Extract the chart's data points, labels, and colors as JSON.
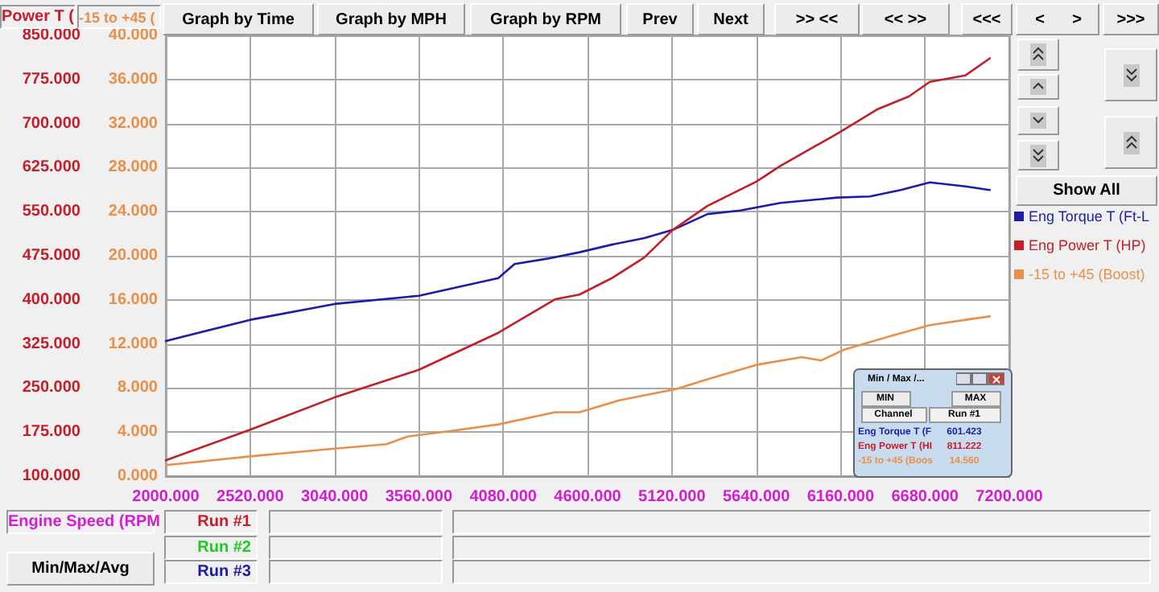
{
  "chart_data": {
    "type": "line",
    "xlabel": "Engine Speed (RPM",
    "ylabel": "Power T (",
    "y2label": "-15 to +45 (",
    "xlim": [
      2000,
      7200
    ],
    "xticks": [
      {
        "value": 2000,
        "label": "2000.000"
      },
      {
        "value": 2520,
        "label": "2520.000"
      },
      {
        "value": 3040,
        "label": "3040.000"
      },
      {
        "value": 3560,
        "label": "3560.000"
      },
      {
        "value": 4080,
        "label": "4080.000"
      },
      {
        "value": 4600,
        "label": "4600.000"
      },
      {
        "value": 5120,
        "label": "5120.000"
      },
      {
        "value": 5640,
        "label": "5640.000"
      },
      {
        "value": 6160,
        "label": "6160.000"
      },
      {
        "value": 6680,
        "label": "6680.000"
      },
      {
        "value": 7200,
        "label": "7200.000"
      }
    ],
    "ylim": [
      100,
      850
    ],
    "yticks": [
      {
        "value": 100,
        "label": "100.000"
      },
      {
        "value": 175,
        "label": "175.000"
      },
      {
        "value": 250,
        "label": "250.000"
      },
      {
        "value": 325,
        "label": "325.000"
      },
      {
        "value": 400,
        "label": "400.000"
      },
      {
        "value": 475,
        "label": "475.000"
      },
      {
        "value": 550,
        "label": "550.000"
      },
      {
        "value": 625,
        "label": "625.000"
      },
      {
        "value": 700,
        "label": "700.000"
      },
      {
        "value": 775,
        "label": "775.000"
      },
      {
        "value": 850,
        "label": "850.000"
      }
    ],
    "y2lim": [
      0,
      40
    ],
    "y2ticks": [
      {
        "value": 0,
        "label": "0.000"
      },
      {
        "value": 4,
        "label": "4.000"
      },
      {
        "value": 8,
        "label": "8.000"
      },
      {
        "value": 12,
        "label": "12.000"
      },
      {
        "value": 16,
        "label": "16.000"
      },
      {
        "value": 20,
        "label": "20.000"
      },
      {
        "value": 24,
        "label": "24.000"
      },
      {
        "value": 28,
        "label": "28.000"
      },
      {
        "value": 32,
        "label": "32.000"
      },
      {
        "value": 36,
        "label": "36.000"
      },
      {
        "value": 40,
        "label": "40.000"
      }
    ],
    "grid": true,
    "legend": "right",
    "marker": "none",
    "line_style": "solid",
    "series": [
      {
        "name": "Eng Torque T (Ft-L",
        "color": "#1c1ca8",
        "x": [
          2000,
          2520,
          3040,
          3560,
          4050,
          4150,
          4350,
          4550,
          4750,
          4950,
          5125,
          5340,
          5540,
          5790,
          6140,
          6340,
          6530,
          6710,
          6930,
          7080
        ],
        "values": [
          330,
          366,
          393,
          407,
          437,
          461,
          470,
          481,
          494,
          505,
          519,
          546,
          552,
          565,
          574,
          576,
          587,
          600,
          593,
          587
        ]
      },
      {
        "name": "Eng Power T (HP)",
        "color": "#c41e2a",
        "x": [
          2000,
          2520,
          3040,
          3560,
          4050,
          4400,
          4550,
          4750,
          4950,
          5125,
          5340,
          5640,
          5790,
          6140,
          6385,
          6580,
          6710,
          6930,
          7080
        ],
        "values": [
          127,
          179,
          234,
          281,
          344,
          401,
          409,
          437,
          472,
          519,
          560,
          601,
          628,
          683,
          724,
          746,
          771,
          782,
          811
        ]
      },
      {
        "name": "-15 to +45 (Boost)",
        "color": "#e8904a",
        "axis": "y2",
        "x": [
          2000,
          2520,
          3040,
          3360,
          3490,
          3760,
          4050,
          4400,
          4550,
          4800,
          5145,
          5340,
          5640,
          5920,
          6040,
          6185,
          6465,
          6710,
          6980,
          7080
        ],
        "values": [
          1.0,
          1.8,
          2.5,
          2.9,
          3.6,
          4.1,
          4.7,
          5.8,
          5.8,
          6.9,
          7.9,
          8.8,
          10.1,
          10.8,
          10.5,
          11.5,
          12.7,
          13.7,
          14.3,
          14.5
        ]
      }
    ],
    "annotations": [
      "Graph by Time",
      "Graph by MPH",
      "Graph by RPM",
      "Prev",
      "Next",
      ">> <<",
      "<< >>",
      "<<<",
      "<",
      ">",
      ">>>",
      "Show All",
      "Run #1",
      "Run #2",
      "Run #3",
      "Min/Max/Avg",
      "Min / Max /...",
      "MIN",
      "MAX",
      "Channel",
      "Run #1",
      "Eng Torque T (F",
      "601.423",
      "Eng Power T (HI",
      "811.222",
      "-15 to +45 (Boos",
      "14.560"
    ]
  }
}
